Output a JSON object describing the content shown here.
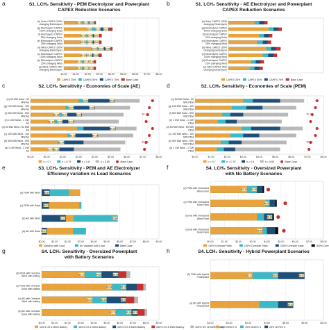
{
  "figure": {
    "label": "LCH₂ sensitivity figure panels a–h"
  },
  "chart_data": [
    {
      "letter": "a",
      "type": "bar",
      "title_lines": [
        "S1. LCH₂ Sensitivity - PEM Electrolyzer and Powerplant",
        "CAPEX Reduction Scenarios"
      ],
      "categories": [
        "(h) Solar CAPEX 100% changing Electrolyzer CAPEX",
        "(g) Electrolyzer CAPEX 100% changing Solar CAPEX",
        "(f) Electrolyzer CAPEX 25% changing Solar CAPEX",
        "(e) Electrolyzer CAPEX 25% changing Wind CAPEX",
        "(d) Wind CAPEX 100% changing Electrolyzer CAPEX",
        "(c) Electrolyzer CAPEX 100% changing Wind CAPEX",
        "(b) Electrolyzer CAPEX 25% changing Wind CAPEX",
        "(a) Wind CAPEX 25% changing Electrolyzer CAPEX"
      ],
      "series": [
        {
          "name": "CAPEX 25%",
          "color": "#e8a33d",
          "values": [
            1.55,
            2.4,
            1.9,
            1.88,
            2.8,
            1.9,
            1.55,
            1.55
          ]
        },
        {
          "name": "CAPEX 50%",
          "color": "#3fb8c6",
          "values": [
            2.1,
            3.1,
            2.45,
            2.45,
            3.37,
            2.4,
            2.12,
            2.12
          ]
        },
        {
          "name": "CAPEX 75%",
          "color": "#1f4e78",
          "values": [
            2.6,
            3.79,
            3.0,
            3.0,
            3.95,
            2.95,
            2.55,
            2.55
          ]
        },
        {
          "name": "Base Case",
          "color": "#c7322f",
          "values": [
            2.7,
            4.1,
            3.19,
            3.17,
            4.1,
            3.19,
            2.7,
            2.7
          ]
        }
      ],
      "data_labels": [
        [
          "$1.92",
          "$2.10",
          "$2.56"
        ],
        [
          "$2.89",
          "$3.10",
          "$3.79"
        ],
        [
          "$2.25",
          "$2.45",
          "$3.00"
        ],
        [
          "$2.30",
          "$2.45",
          "$3.01"
        ],
        [
          "$2.97",
          "$3.37",
          "$3.95"
        ],
        [
          "$2.19",
          "$2.40",
          "$2.95"
        ],
        [
          "$1.92",
          "$2.13",
          "$2.54"
        ],
        [
          "$1.60",
          "$2.12",
          "$2.59"
        ]
      ],
      "xticks": [
        "$0.00",
        "$1.00",
        "$2.00",
        "$3.00",
        "$4.00",
        "$5.00",
        "$6.00",
        "$7.00",
        "$8.00"
      ],
      "xlim": [
        0,
        8
      ]
    },
    {
      "letter": "b",
      "type": "bar",
      "title_lines": [
        "S1. LCH₂ Sensitivity - AE Electrolyzer and Powerplant",
        "CAPEX Reduction Scenarios"
      ],
      "categories": [
        "(h) Solar CAPEX 100% changing Electrolyzer CAPEX",
        "(g) Electrolyzer CAPEX 100% changing Solar CAPEX",
        "(f) Electrolyzer CAPEX 25% changing Solar CAPEX",
        "(e) Electrolyzer CAPEX 25% changing Wind CAPEX",
        "(d) Wind CAPEX 100% changing Electrolyzer CAPEX",
        "(c) Electrolyzer CAPEX 100% changing Wind CAPEX",
        "(b) Electrolyzer CAPEX 25% changing Wind CAPEX",
        "(a) Wind CAPEX 25% changing Electrolyzer CAPEX"
      ],
      "series": [
        {
          "name": "CAPEX 25%",
          "color": "#e8a33d",
          "values": [
            2.2,
            3.4,
            2.6,
            2.4,
            3.2,
            2.9,
            1.9,
            1.8
          ]
        },
        {
          "name": "CAPEX 50%",
          "color": "#3fb8c6",
          "values": [
            2.6,
            3.8,
            3.0,
            2.9,
            3.6,
            3.35,
            2.3,
            2.2
          ]
        },
        {
          "name": "CAPEX 75%",
          "color": "#1f4e78",
          "values": [
            3.0,
            4.2,
            3.4,
            3.3,
            4.0,
            3.8,
            2.7,
            2.6
          ]
        },
        {
          "name": "Base Case",
          "color": "#c7322f",
          "values": [
            3.3,
            4.5,
            3.7,
            3.6,
            4.4,
            4.1,
            3.0,
            2.9
          ]
        }
      ],
      "data_labels": [],
      "xticks": [],
      "xlim": [
        0,
        8
      ]
    },
    {
      "letter": "c",
      "type": "bar",
      "title_lines": [
        "S2. LCH₂ Sensitivity - Economies of Scale (AE)"
      ],
      "categories": [
        "(h) 50 MW Solar - 50 MW AE",
        "(g) 100 MW Solar - 100 MW AE",
        "(f) 500 MW Solar - 500 MW AE",
        "(e) 1 GW Solar - 1 GW AE",
        "(d) 50 MW Wind - 50 MW AE",
        "(c) 100 MW Wind - 100 MW AE",
        "(b) 500 MW Wind - 500 MW AE",
        "(a) 1 GW Wind - 1 GW AE"
      ],
      "series": [
        {
          "name": "n = 0.7",
          "color": "#e8a33d",
          "values": [
            3.0,
            2.15,
            1.8,
            1.5,
            2.9,
            2.3,
            1.7,
            1.4
          ]
        },
        {
          "name": "n = 0.75",
          "color": "#3fb8c6",
          "values": [
            3.6,
            2.7,
            2.3,
            2.0,
            3.3,
            2.8,
            2.1,
            1.8
          ]
        },
        {
          "name": "n = 0.8",
          "color": "#1f4e78",
          "values": [
            5.26,
            4.0,
            3.2,
            2.7,
            5.3,
            4.2,
            3.3,
            2.7
          ]
        },
        {
          "name": "n = 0.85",
          "color": "#b8b8b8",
          "values": [
            6.8,
            6.2,
            5.8,
            5.5,
            6.6,
            6.4,
            5.9,
            5.6
          ]
        },
        {
          "name": "Base Case",
          "color": "#c7322f",
          "values": [
            7.6,
            7.4,
            7.3,
            7.2,
            7.6,
            7.4,
            7.2,
            7.1
          ]
        }
      ],
      "data_labels": [
        [
          "",
          "$3.62",
          "$5.26"
        ],
        [
          "",
          "$3.37",
          "$4.25"
        ],
        [
          "$1.96",
          "$2.07",
          "$3.05"
        ],
        [
          "$1.80",
          "$2.06",
          "$2.40"
        ],
        [
          "",
          "",
          "$5.31"
        ],
        [
          "",
          "$3.31",
          "$4.10"
        ],
        [
          "",
          "$2.67",
          ""
        ],
        [
          "$1.97",
          "$2.53",
          ""
        ]
      ],
      "annotations": [
        "$6.14",
        "$4.53"
      ],
      "xticks": [
        "$0.00",
        "$1.00",
        "$2.00",
        "$3.00",
        "$4.00",
        "$5.00",
        "$6.00",
        "$7.00",
        "$8.00"
      ],
      "xlim": [
        0,
        8
      ]
    },
    {
      "letter": "d",
      "type": "bar",
      "title_lines": [
        "S2. LCH₂ Sensitivity - Economies of Scale (PEM)"
      ],
      "categories": [
        "(h) 50 MW Solar - 50 MW PEM",
        "(g) 100 MW Solar - 100 MW PEM",
        "(f) 500 MW Solar - 500 MW PEM",
        "(e) 1 GW Solar - 1 GW PEM",
        "(d) 50 MW Wind - 50 MW PEM",
        "(c) 100 MW Wind - 100 MW PEM",
        "(b) 500 MW Wind - 500 MW PEM",
        "(a) 1 GW Wind - 1 GW PEM"
      ],
      "series": [
        {
          "name": "n = 0.7",
          "color": "#e8a33d",
          "values": [
            3.0,
            2.3,
            1.7,
            1.4,
            2.9,
            2.2,
            1.6,
            1.35
          ]
        },
        {
          "name": "n = 0.75",
          "color": "#3fb8c6",
          "values": [
            3.6,
            3.2,
            2.2,
            1.9,
            3.5,
            3.0,
            2.1,
            1.8
          ]
        },
        {
          "name": "n = 0.8",
          "color": "#1f4e78",
          "values": [
            5.3,
            4.2,
            3.0,
            2.6,
            5.3,
            4.0,
            2.9,
            2.5
          ]
        },
        {
          "name": "n = 0.85",
          "color": "#b8b8b8",
          "values": [
            6.8,
            6.3,
            5.8,
            5.4,
            6.7,
            6.3,
            5.7,
            5.3
          ]
        },
        {
          "name": "Base Case",
          "color": "#c7322f",
          "values": [
            7.6,
            7.5,
            7.3,
            7.2,
            7.6,
            7.5,
            7.2,
            7.1
          ]
        }
      ],
      "data_labels": [],
      "annotations": [
        "$7.18",
        "$5.58"
      ],
      "xticks": [
        "$0.00",
        "$1.00",
        "$2.00",
        "$3.00",
        "$4.00",
        "$5.00",
        "$6.00",
        "$7.00",
        "$8.00"
      ],
      "xlim": [
        0,
        8
      ]
    },
    {
      "letter": "e",
      "type": "bar",
      "title_lines": [
        "S3. LCH₂ Sensitivity - PEM and AE Electrolyzer",
        "Efficiency variation vs Load Scenarios"
      ],
      "categories": [
        "(d) PEM with Wind",
        "(c) PEM with Solar",
        "(b) AE with Wind",
        "(a) AE with Solar"
      ],
      "series": [
        {
          "name": "Variation with Load",
          "color": "#e8a33d",
          "values": [
            2.95,
            2.9,
            2.45,
            2.4
          ]
        },
        {
          "name": "No Variation with Load",
          "color": "#3fb8c6",
          "values": [
            2.1,
            3.05,
            5.84,
            3.4
          ]
        },
        {
          "name": "Base Case",
          "color": "#1f4e78",
          "values": [
            0.62,
            0.56,
            1.86,
            0.4
          ]
        }
      ],
      "data_labels": [
        [
          "",
          "",
          "$5.67"
        ],
        [
          "",
          "",
          "$6.51"
        ],
        [
          "",
          "$5.84",
          "$7.70"
        ],
        [
          "",
          "",
          "$6.12"
        ]
      ],
      "xticks": [
        "$0.00",
        "$1.00",
        "$2.00",
        "$3.00",
        "$4.00",
        "$5.00",
        "$6.00",
        "$7.00",
        "$8.00",
        "$9.00"
      ],
      "xlim": [
        0,
        9
      ]
    },
    {
      "letter": "f",
      "type": "bar",
      "title_lines": [
        "S4. LCH₂ Sensitivity - Oversized Powerplant",
        "with No Battery Scenarios"
      ],
      "categories": [
        "(d) PEM with Oversized Wind Farm",
        "(c) PEM with Oversized Solar Farm",
        "(b) AE with Oversized Wind Farm",
        "(a) AE with Oversized Solar Farm"
      ],
      "series": [
        {
          "name": "150% Oversize Ratio",
          "color": "#e8a33d",
          "values": [
            2.6,
            3.9,
            3.3,
            3.7
          ]
        },
        {
          "name": "200% Oversize Ratio",
          "color": "#3fb8c6",
          "values": [
            3.3,
            4.2,
            3.8,
            4.0
          ]
        },
        {
          "name": "250% Oversize Ratio",
          "color": "#1f4e78",
          "values": [
            3.7,
            4.6,
            4.4,
            4.6
          ]
        },
        {
          "name": "300% Oversize Ratio",
          "color": "#0b0b0b",
          "values": [
            3.8,
            4.7,
            4.5,
            4.8
          ]
        },
        {
          "name": "No Oversizing",
          "color": "#c7322f",
          "values": [
            4.1,
            5.3,
            4.8,
            5.2
          ]
        }
      ],
      "data_labels": [
        [
          "$3.30",
          "$4.30",
          ""
        ],
        [
          "",
          "$6.32",
          ""
        ],
        [
          "",
          "",
          "$6.10"
        ],
        [
          "$6.50",
          "",
          ""
        ]
      ],
      "xticks": [
        "$0.00",
        "$1.00",
        "$2.00",
        "$3.00",
        "$4.00",
        "$5.00",
        "$6.00",
        "$7.00",
        "$8.00"
      ],
      "xlim": [
        0,
        8
      ]
    },
    {
      "letter": "g",
      "type": "bar",
      "title_lines": [
        "S4. LCH₂ Sensitivity - Oversized Powerplant",
        "with Battery Scenarios"
      ],
      "categories": [
        "(d) PEM with Oversize Wind with battery",
        "(c) PEM with Oversize Solar with battery",
        "(b) AE with Oversize Wind with battery",
        "(a) AE with Oversize Solar with battery"
      ],
      "series": [
        {
          "name": "100% OS 4 MWh Battery",
          "color": "#e8a33d",
          "values": [
            3.3,
            5.4,
            3.9,
            5.7
          ]
        },
        {
          "name": "150% OS 4 MWh Battery",
          "color": "#3fb8c6",
          "values": [
            4.6,
            6.5,
            5.0,
            6.9
          ]
        },
        {
          "name": "200% OS 8 MWh Battery",
          "color": "#1f4e78",
          "values": [
            5.9,
            7.3,
            6.5,
            7.4
          ]
        },
        {
          "name": "250% OS 8 MWh Battery",
          "color": "#c7322f",
          "values": [
            6.5,
            7.8,
            7.1,
            7.9
          ]
        },
        {
          "name": "300% OS 16 MWh Battery",
          "color": "#b8b8b8",
          "values": [
            6.8,
            8.0,
            7.4,
            8.1
          ]
        }
      ],
      "data_labels": [
        [
          "$3.27",
          "$4.69",
          "$5.86"
        ],
        [
          "$3.64",
          "$5.10",
          ""
        ],
        [
          "$3.20",
          "$4.60",
          "$5.95"
        ],
        [
          "$3.73",
          "$5.19",
          "$6.33"
        ]
      ],
      "xticks": [
        "$0.00",
        "$1.00",
        "$2.00",
        "$3.00",
        "$4.00",
        "$5.00",
        "$6.00",
        "$7.00",
        "$8.00",
        "$9.00"
      ],
      "xlim": [
        0,
        9
      ]
    },
    {
      "letter": "h",
      "type": "bar",
      "title_lines": [
        "S4. LCH₂ Sensitivity - Hybrid Powerplant Scenarios"
      ],
      "categories": [
        "(b) PEM with Hybrid Powerplant",
        "(a) AE with Hybrid Powerplant"
      ],
      "series": [
        {
          "name": "50% W/50% S",
          "color": "#e8a33d",
          "values": [
            4.12,
            4.3
          ]
        },
        {
          "name": "75% W/25% S",
          "color": "#3fb8c6",
          "values": [
            4.8,
            4.8
          ]
        },
        {
          "name": "25% W/75% S",
          "color": "#1f4e78",
          "values": [
            5.5,
            5.2
          ]
        }
      ],
      "data_labels": [
        [
          "$4.12",
          "$4.80",
          "$5.50"
        ],
        [
          "",
          "",
          "$5.30"
        ]
      ],
      "xticks": [
        "$3.00",
        "$3.50",
        "$4.00",
        "$4.50",
        "$5.00",
        "$5.50",
        "$6.00"
      ],
      "xlim": [
        3,
        6
      ]
    }
  ]
}
